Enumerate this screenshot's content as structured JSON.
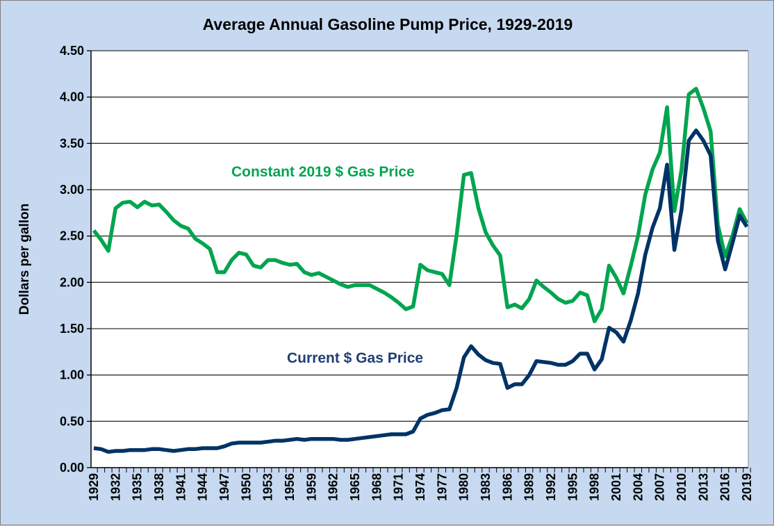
{
  "chart_data": {
    "type": "line",
    "title": "Average Annual Gasoline Pump Price, 1929-2019",
    "xlabel": "",
    "ylabel": "Dollars per gallon",
    "ylim": [
      0,
      4.5
    ],
    "xlim": [
      1929,
      2019
    ],
    "yticks": [
      "0.00",
      "0.50",
      "1.00",
      "1.50",
      "2.00",
      "2.50",
      "3.00",
      "3.50",
      "4.00",
      "4.50"
    ],
    "xtick_step": 3,
    "grid": "horizontal",
    "x_start": 1929,
    "series": [
      {
        "name": "Constant 2019 $ Gas Price",
        "color": "#00a54f",
        "values": [
          2.56,
          2.46,
          2.34,
          2.8,
          2.86,
          2.87,
          2.81,
          2.87,
          2.83,
          2.84,
          2.76,
          2.67,
          2.61,
          2.58,
          2.47,
          2.42,
          2.36,
          2.11,
          2.11,
          2.24,
          2.32,
          2.3,
          2.18,
          2.16,
          2.24,
          2.24,
          2.21,
          2.19,
          2.2,
          2.11,
          2.08,
          2.1,
          2.06,
          2.02,
          1.98,
          1.95,
          1.97,
          1.97,
          1.97,
          1.93,
          1.89,
          1.84,
          1.78,
          1.71,
          1.74,
          2.19,
          2.13,
          2.11,
          2.09,
          1.97,
          2.51,
          3.16,
          3.18,
          2.8,
          2.54,
          2.4,
          2.29,
          1.73,
          1.76,
          1.72,
          1.82,
          2.02,
          1.95,
          1.89,
          1.82,
          1.78,
          1.8,
          1.89,
          1.86,
          1.58,
          1.71,
          2.18,
          2.05,
          1.88,
          2.18,
          2.5,
          2.95,
          3.22,
          3.4,
          3.89,
          2.77,
          3.22,
          4.03,
          4.09,
          3.88,
          3.63,
          2.62,
          2.28,
          2.5,
          2.79,
          2.64
        ]
      },
      {
        "name": "Current $ Gas Price",
        "color": "#003366",
        "values": [
          0.21,
          0.2,
          0.17,
          0.18,
          0.18,
          0.19,
          0.19,
          0.19,
          0.2,
          0.2,
          0.19,
          0.18,
          0.19,
          0.2,
          0.2,
          0.21,
          0.21,
          0.21,
          0.23,
          0.26,
          0.27,
          0.27,
          0.27,
          0.27,
          0.28,
          0.29,
          0.29,
          0.3,
          0.31,
          0.3,
          0.31,
          0.31,
          0.31,
          0.31,
          0.3,
          0.3,
          0.31,
          0.32,
          0.33,
          0.34,
          0.35,
          0.36,
          0.36,
          0.36,
          0.39,
          0.53,
          0.57,
          0.59,
          0.62,
          0.63,
          0.86,
          1.19,
          1.31,
          1.22,
          1.16,
          1.13,
          1.12,
          0.86,
          0.9,
          0.9,
          1.0,
          1.15,
          1.14,
          1.13,
          1.11,
          1.11,
          1.15,
          1.23,
          1.23,
          1.06,
          1.17,
          1.51,
          1.46,
          1.36,
          1.59,
          1.88,
          2.3,
          2.59,
          2.8,
          3.27,
          2.35,
          2.79,
          3.53,
          3.64,
          3.53,
          3.37,
          2.45,
          2.14,
          2.42,
          2.72,
          2.6
        ]
      }
    ]
  }
}
